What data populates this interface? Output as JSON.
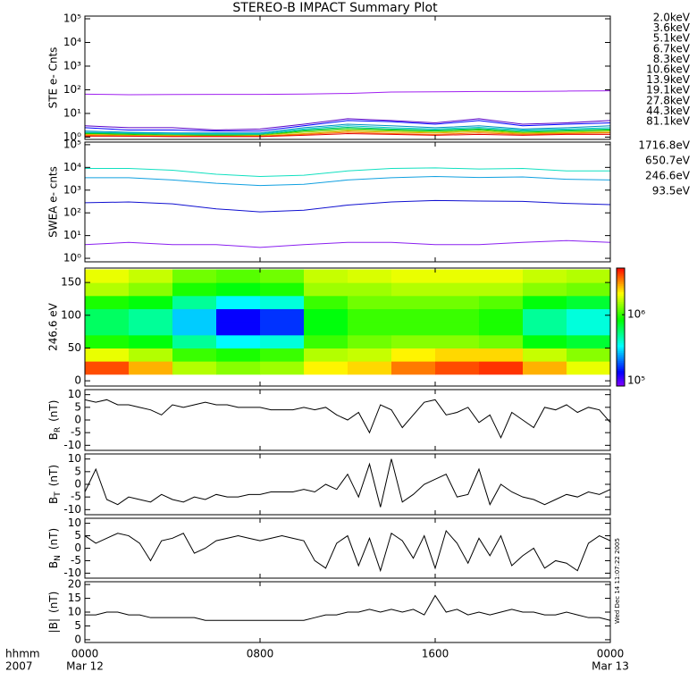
{
  "title": "STEREO-B IMPACT Summary Plot",
  "timestamp": "Wed Dec 14 11:07:22 2005",
  "time_label": "hhmm",
  "year_label": "2007",
  "chart_data": [
    {
      "type": "line",
      "log_y": true,
      "y_label": "STE e- Cnts",
      "xlim": [
        0,
        24
      ],
      "ylim": [
        0.8,
        130000
      ],
      "yticks": [
        {
          "value": 1,
          "label": "10⁰"
        },
        {
          "value": 10,
          "label": "10¹"
        },
        {
          "value": 100,
          "label": "10²"
        },
        {
          "value": 1000,
          "label": "10³"
        },
        {
          "value": 10000,
          "label": "10⁴"
        },
        {
          "value": 100000,
          "label": "10⁵"
        }
      ],
      "x": [
        0,
        2,
        4,
        6,
        8,
        10,
        12,
        14,
        16,
        18,
        20,
        22,
        24
      ],
      "series": [
        {
          "name": "2.0keV",
          "color": "#a020f0",
          "values": [
            65,
            62,
            63,
            64,
            64,
            66,
            70,
            80,
            82,
            85,
            85,
            88,
            90
          ]
        },
        {
          "name": "3.6keV",
          "color": "#5a00c8",
          "values": [
            3,
            2.5,
            2.5,
            2,
            2.2,
            3.5,
            6,
            5,
            4,
            6,
            3.5,
            4,
            5
          ]
        },
        {
          "name": "5.1keV",
          "color": "#0000ff",
          "values": [
            2.5,
            2,
            2,
            1.8,
            1.8,
            3,
            5,
            4.5,
            3.5,
            5,
            3,
            3.5,
            4
          ]
        },
        {
          "name": "6.7keV",
          "color": "#0090c0",
          "values": [
            1.8,
            1.6,
            1.5,
            1.5,
            1.5,
            2.5,
            3.5,
            3,
            2.5,
            3,
            2.2,
            2.5,
            3
          ]
        },
        {
          "name": "8.3keV",
          "color": "#00c8c8",
          "values": [
            1.6,
            1.5,
            1.4,
            1.4,
            1.4,
            2.2,
            3,
            2.5,
            2.2,
            2.6,
            2,
            2.2,
            2.5
          ]
        },
        {
          "name": "10.6keV",
          "color": "#00c080",
          "values": [
            1.5,
            1.4,
            1.3,
            1.3,
            1.3,
            2,
            2.6,
            2.2,
            2,
            2.3,
            1.8,
            2,
            2.2
          ]
        },
        {
          "name": "13.9keV",
          "color": "#00d000",
          "values": [
            1.4,
            1.3,
            1.2,
            1.2,
            1.2,
            1.8,
            2.3,
            2,
            1.8,
            2.1,
            1.6,
            1.8,
            2
          ]
        },
        {
          "name": "19.1keV",
          "color": "#a0d000",
          "values": [
            1.3,
            1.2,
            1.2,
            1.1,
            1.2,
            1.6,
            2,
            1.8,
            1.6,
            1.9,
            1.5,
            1.6,
            1.8
          ]
        },
        {
          "name": "27.8keV",
          "color": "#e0b000",
          "values": [
            1.3,
            1.2,
            1.1,
            1.1,
            1.1,
            1.4,
            1.8,
            1.6,
            1.5,
            1.7,
            1.4,
            1.5,
            1.6
          ]
        },
        {
          "name": "44.3keV",
          "color": "#ff7000",
          "values": [
            1.2,
            1.1,
            1.1,
            1.1,
            1.1,
            1.3,
            1.6,
            1.4,
            1.3,
            1.5,
            1.3,
            1.4,
            1.5
          ]
        },
        {
          "name": "81.1keV",
          "color": "#e00000",
          "values": [
            1.1,
            1.1,
            1.05,
            1.05,
            1.05,
            1.2,
            1.4,
            1.3,
            1.2,
            1.3,
            1.2,
            1.3,
            1.3
          ]
        }
      ]
    },
    {
      "type": "line",
      "log_y": true,
      "y_label": "SWEA e- cnts",
      "xlim": [
        0,
        24
      ],
      "ylim": [
        0.7,
        130000
      ],
      "yticks": [
        {
          "value": 1,
          "label": "10⁰"
        },
        {
          "value": 10,
          "label": "10¹"
        },
        {
          "value": 100,
          "label": "10²"
        },
        {
          "value": 1000,
          "label": "10³"
        },
        {
          "value": 10000,
          "label": "10⁴"
        },
        {
          "value": 100000,
          "label": "10⁵"
        }
      ],
      "x": [
        0,
        2,
        4,
        6,
        8,
        10,
        12,
        14,
        16,
        18,
        20,
        22,
        24
      ],
      "series": [
        {
          "name": "1716.8eV",
          "color": "#8a20f0",
          "values": [
            4,
            5,
            4,
            4,
            3,
            4,
            5,
            5,
            4,
            4,
            5,
            6,
            5
          ]
        },
        {
          "name": "650.7eV",
          "color": "#1010d0",
          "values": [
            280,
            300,
            250,
            150,
            110,
            130,
            220,
            300,
            350,
            330,
            320,
            260,
            230
          ]
        },
        {
          "name": "246.6eV",
          "color": "#10a0e0",
          "values": [
            3500,
            3500,
            2800,
            2000,
            1600,
            1800,
            2800,
            3500,
            4000,
            3600,
            3800,
            3000,
            2800
          ]
        },
        {
          "name": "93.5eV",
          "color": "#10e0c0",
          "values": [
            9000,
            9000,
            7500,
            5000,
            4000,
            4500,
            7000,
            9000,
            9500,
            8500,
            9000,
            7000,
            7000
          ]
        }
      ]
    },
    {
      "type": "heatmap",
      "y_label": "246.6 eV",
      "xlim": [
        0,
        24
      ],
      "ylim": [
        -8,
        172
      ],
      "yticks": [
        0,
        50,
        100,
        150
      ],
      "x_bins": [
        0,
        2,
        4,
        6,
        8,
        10,
        12,
        14,
        16,
        18,
        20,
        22,
        24
      ],
      "y_bins": [
        10,
        30,
        50,
        70,
        90,
        110,
        130,
        150,
        170
      ],
      "values": [
        [
          3500000,
          1800000,
          900000,
          600000,
          600000,
          900000,
          1500000,
          1800000
        ],
        [
          2500000,
          1500000,
          800000,
          500000,
          500000,
          800000,
          1300000,
          1600000
        ],
        [
          1500000,
          1000000,
          500000,
          300000,
          300000,
          500000,
          900000,
          1200000
        ],
        [
          1300000,
          900000,
          350000,
          150000,
          150000,
          350000,
          800000,
          1100000
        ],
        [
          1400000,
          1000000,
          400000,
          180000,
          180000,
          400000,
          900000,
          1200000
        ],
        [
          2000000,
          1500000,
          1000000,
          800000,
          800000,
          1000000,
          1400000,
          1600000
        ],
        [
          2200000,
          1600000,
          1200000,
          1000000,
          1000000,
          1200000,
          1400000,
          1700000
        ],
        [
          3000000,
          2000000,
          1300000,
          1000000,
          1000000,
          1200000,
          1500000,
          1800000
        ],
        [
          3500000,
          2200000,
          1300000,
          1000000,
          1000000,
          1200000,
          1500000,
          1800000
        ],
        [
          3800000,
          2200000,
          1200000,
          900000,
          900000,
          1100000,
          1500000,
          1800000
        ],
        [
          2500000,
          1600000,
          800000,
          500000,
          500000,
          800000,
          1300000,
          1600000
        ],
        [
          1800000,
          1300000,
          700000,
          400000,
          400000,
          700000,
          1200000,
          1500000
        ]
      ],
      "colorlim": [
        100000,
        4500000
      ],
      "color_ticks": [
        {
          "value": 100000,
          "label": "10⁵"
        },
        {
          "value": 1000000,
          "label": "10⁶"
        }
      ]
    },
    {
      "type": "line",
      "y_label": {
        "base": "B",
        "sub": "R",
        "unit": "(nT)"
      },
      "xlim": [
        0,
        24
      ],
      "ylim": [
        -12,
        12
      ],
      "yticks": [
        -10,
        -5,
        0,
        5,
        10
      ],
      "x": [
        0,
        0.5,
        1,
        1.5,
        2,
        2.5,
        3,
        3.5,
        4,
        4.5,
        5,
        5.5,
        6,
        6.5,
        7,
        7.5,
        8,
        8.5,
        9,
        9.5,
        10,
        10.5,
        11,
        11.5,
        12,
        12.5,
        13,
        13.5,
        14,
        14.5,
        15,
        15.5,
        16,
        16.5,
        17,
        17.5,
        18,
        18.5,
        19,
        19.5,
        20,
        20.5,
        21,
        21.5,
        22,
        22.5,
        23,
        23.5,
        24
      ],
      "series": [
        {
          "color": "#000000",
          "values": [
            8,
            7,
            8,
            6,
            6,
            5,
            4,
            2,
            6,
            5,
            6,
            7,
            6,
            6,
            5,
            5,
            5,
            4,
            4,
            4,
            5,
            4,
            5,
            2,
            0,
            3,
            -5,
            6,
            4,
            -3,
            2,
            7,
            8,
            2,
            3,
            5,
            -1,
            2,
            -7,
            3,
            0,
            -3,
            5,
            4,
            6,
            3,
            5,
            4,
            -1
          ]
        }
      ]
    },
    {
      "type": "line",
      "y_label": {
        "base": "B",
        "sub": "T",
        "unit": "(nT)"
      },
      "xlim": [
        0,
        24
      ],
      "ylim": [
        -12,
        12
      ],
      "yticks": [
        -10,
        -5,
        0,
        5,
        10
      ],
      "x": [
        0,
        0.5,
        1,
        1.5,
        2,
        2.5,
        3,
        3.5,
        4,
        4.5,
        5,
        5.5,
        6,
        6.5,
        7,
        7.5,
        8,
        8.5,
        9,
        9.5,
        10,
        10.5,
        11,
        11.5,
        12,
        12.5,
        13,
        13.5,
        14,
        14.5,
        15,
        15.5,
        16,
        16.5,
        17,
        17.5,
        18,
        18.5,
        19,
        19.5,
        20,
        20.5,
        21,
        21.5,
        22,
        22.5,
        23,
        23.5,
        24
      ],
      "series": [
        {
          "color": "#000000",
          "values": [
            -3,
            6,
            -6,
            -8,
            -5,
            -6,
            -7,
            -4,
            -6,
            -7,
            -5,
            -6,
            -4,
            -5,
            -5,
            -4,
            -4,
            -3,
            -3,
            -3,
            -2,
            -3,
            0,
            -2,
            4,
            -5,
            8,
            -9,
            10,
            -7,
            -4,
            0,
            2,
            4,
            -5,
            -4,
            6,
            -8,
            0,
            -3,
            -5,
            -6,
            -8,
            -6,
            -4,
            -5,
            -3,
            -4,
            -2
          ]
        }
      ]
    },
    {
      "type": "line",
      "y_label": {
        "base": "B",
        "sub": "N",
        "unit": "(nT)"
      },
      "xlim": [
        0,
        24
      ],
      "ylim": [
        -12,
        12
      ],
      "yticks": [
        -10,
        -5,
        0,
        5,
        10
      ],
      "x": [
        0,
        0.5,
        1,
        1.5,
        2,
        2.5,
        3,
        3.5,
        4,
        4.5,
        5,
        5.5,
        6,
        6.5,
        7,
        7.5,
        8,
        8.5,
        9,
        9.5,
        10,
        10.5,
        11,
        11.5,
        12,
        12.5,
        13,
        13.5,
        14,
        14.5,
        15,
        15.5,
        16,
        16.5,
        17,
        17.5,
        18,
        18.5,
        19,
        19.5,
        20,
        20.5,
        21,
        21.5,
        22,
        22.5,
        23,
        23.5,
        24
      ],
      "series": [
        {
          "color": "#000000",
          "values": [
            5,
            2,
            4,
            6,
            5,
            2,
            -5,
            3,
            4,
            6,
            -2,
            0,
            3,
            4,
            5,
            4,
            3,
            4,
            5,
            4,
            3,
            -5,
            -8,
            2,
            5,
            -7,
            4,
            -9,
            6,
            3,
            -4,
            5,
            -8,
            7,
            2,
            -6,
            4,
            -3,
            5,
            -7,
            -3,
            0,
            -8,
            -5,
            -6,
            -9,
            2,
            5,
            3
          ]
        }
      ]
    },
    {
      "type": "line",
      "y_label": {
        "base": "|B|",
        "unit": "(nT)"
      },
      "xlim": [
        0,
        24
      ],
      "ylim": [
        -1,
        21
      ],
      "yticks": [
        0,
        5,
        10,
        15,
        20
      ],
      "x": [
        0,
        0.5,
        1,
        1.5,
        2,
        2.5,
        3,
        3.5,
        4,
        4.5,
        5,
        5.5,
        6,
        6.5,
        7,
        7.5,
        8,
        8.5,
        9,
        9.5,
        10,
        10.5,
        11,
        11.5,
        12,
        12.5,
        13,
        13.5,
        14,
        14.5,
        15,
        15.5,
        16,
        16.5,
        17,
        17.5,
        18,
        18.5,
        19,
        19.5,
        20,
        20.5,
        21,
        21.5,
        22,
        22.5,
        23,
        23.5,
        24
      ],
      "series": [
        {
          "color": "#000000",
          "values": [
            9,
            9,
            10,
            10,
            9,
            9,
            8,
            8,
            8,
            8,
            8,
            7,
            7,
            7,
            7,
            7,
            7,
            7,
            7,
            7,
            7,
            8,
            9,
            9,
            10,
            10,
            11,
            10,
            11,
            10,
            11,
            9,
            16,
            10,
            11,
            9,
            10,
            9,
            10,
            11,
            10,
            10,
            9,
            9,
            10,
            9,
            8,
            8,
            7
          ]
        }
      ],
      "xticks": [
        {
          "value": 0,
          "label": "0000"
        },
        {
          "value": 8,
          "label": "0800"
        },
        {
          "value": 16,
          "label": "1600"
        },
        {
          "value": 24,
          "label": "0000"
        }
      ],
      "date_labels": [
        {
          "value": 0,
          "label": "Mar 12"
        },
        {
          "value": 24,
          "label": "Mar 13"
        }
      ]
    }
  ]
}
